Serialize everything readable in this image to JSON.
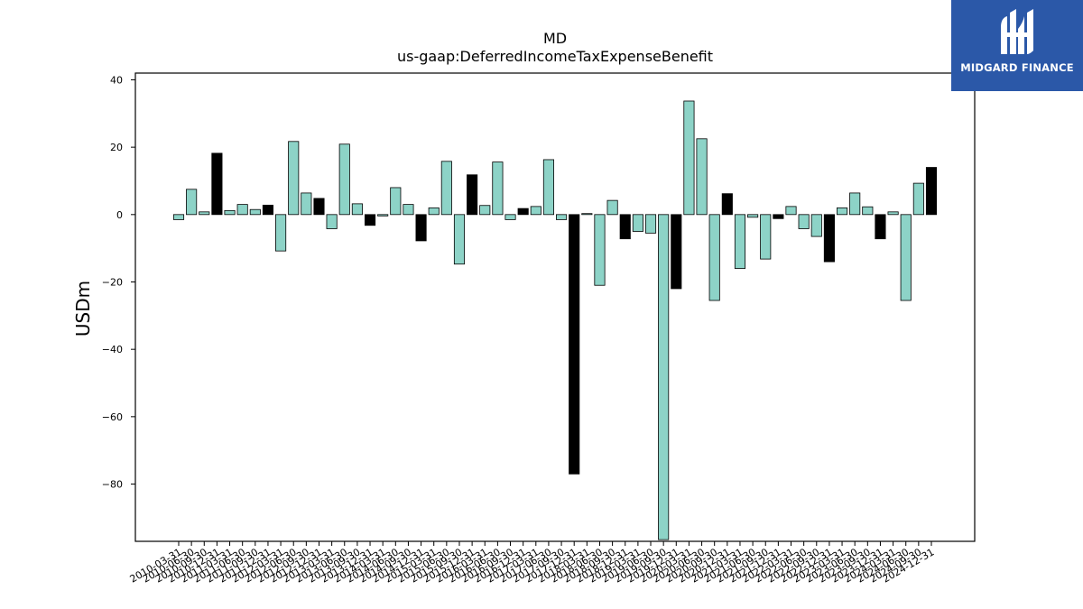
{
  "chart_data": {
    "type": "bar",
    "title": "MD",
    "subtitle": "us-gaap:DeferredIncomeTaxExpenseBenefit",
    "xlabel": "",
    "ylabel": "USDm",
    "ylim": [
      -97,
      42
    ],
    "yticks": [
      40,
      20,
      0,
      -20,
      -40,
      -60,
      -80
    ],
    "grid": false,
    "colors": {
      "default": "#8dd3c7",
      "highlight": "#000000"
    },
    "categories": [
      "2010-03-31",
      "2010-06-30",
      "2010-09-30",
      "2010-12-31",
      "2011-03-31",
      "2011-06-30",
      "2011-09-30",
      "2011-12-31",
      "2012-03-31",
      "2012-06-30",
      "2012-09-30",
      "2012-12-31",
      "2013-03-31",
      "2013-06-30",
      "2013-09-30",
      "2013-12-31",
      "2014-03-31",
      "2014-06-30",
      "2014-09-30",
      "2014-12-31",
      "2015-03-31",
      "2015-06-30",
      "2015-09-30",
      "2015-12-31",
      "2016-03-31",
      "2016-06-30",
      "2016-09-30",
      "2016-12-31",
      "2017-03-31",
      "2017-06-30",
      "2017-09-30",
      "2017-12-31",
      "2018-03-31",
      "2018-06-30",
      "2018-09-30",
      "2018-12-31",
      "2019-03-31",
      "2019-06-30",
      "2019-09-30",
      "2019-12-31",
      "2020-03-31",
      "2020-06-30",
      "2020-09-30",
      "2020-12-31",
      "2021-03-31",
      "2021-06-30",
      "2021-09-30",
      "2021-12-31",
      "2022-03-31",
      "2022-06-30",
      "2022-09-30",
      "2022-12-31",
      "2023-03-31",
      "2023-06-30",
      "2023-09-30",
      "2023-12-31",
      "2024-03-31",
      "2024-06-30",
      "2024-09-30",
      "2024-12-31"
    ],
    "values": [
      -1.5,
      7.5,
      0.8,
      18.2,
      1.2,
      3.0,
      1.5,
      2.8,
      -10.8,
      21.7,
      6.4,
      4.8,
      -4.2,
      20.9,
      3.2,
      -3.2,
      -0.4,
      8.0,
      3.0,
      -7.8,
      2.0,
      15.8,
      -14.7,
      11.8,
      2.7,
      15.6,
      -1.5,
      1.8,
      2.4,
      16.3,
      -1.5,
      -77.0,
      0.3,
      -21.0,
      4.2,
      -7.2,
      -5.0,
      -5.5,
      -96.5,
      -22.0,
      33.7,
      22.5,
      -25.5,
      6.2,
      -16.0,
      -0.8,
      -13.2,
      -1.2,
      2.4,
      -4.2,
      -6.5,
      -14.0,
      2.0,
      6.4,
      2.3,
      -7.2,
      0.8,
      -25.5,
      9.3,
      14.0
    ],
    "highlight": [
      false,
      false,
      false,
      true,
      false,
      false,
      false,
      true,
      false,
      false,
      false,
      true,
      false,
      false,
      false,
      true,
      false,
      false,
      false,
      true,
      false,
      false,
      false,
      true,
      false,
      false,
      false,
      true,
      false,
      false,
      false,
      true,
      false,
      false,
      false,
      true,
      false,
      false,
      false,
      true,
      false,
      false,
      false,
      true,
      false,
      false,
      false,
      true,
      false,
      false,
      false,
      true,
      false,
      false,
      false,
      true,
      false,
      false,
      false,
      true
    ]
  },
  "logo": {
    "text": "MIDGARD FINANCE",
    "icon": "midgard-logo-icon"
  }
}
